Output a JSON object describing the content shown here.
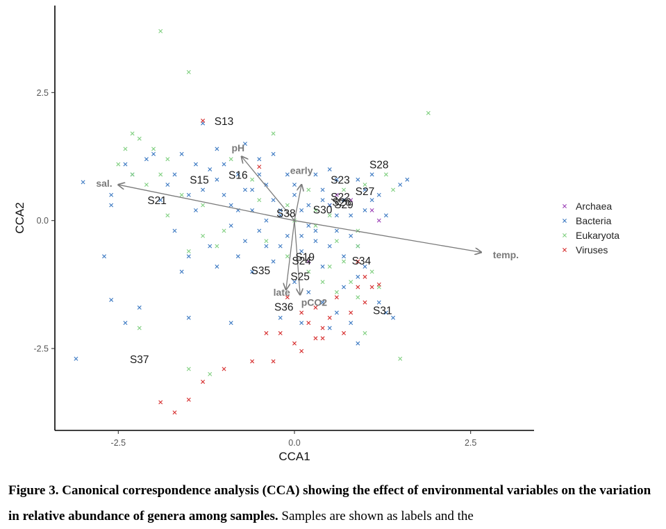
{
  "chart_data": {
    "type": "scatter",
    "title": "",
    "xlabel": "CCA1",
    "ylabel": "CCA2",
    "xlim": [
      -3.4,
      3.4
    ],
    "ylim": [
      -4.1,
      4.2
    ],
    "xticks": [
      -2.5,
      0.0,
      2.5
    ],
    "yticks": [
      -2.5,
      0.0,
      2.5
    ],
    "xtick_labels": [
      "-2.5",
      "0.0",
      "2.5"
    ],
    "ytick_labels": [
      "-2.5",
      "0.0",
      "2.5"
    ],
    "grid": false,
    "legend": {
      "position": "right",
      "entries": [
        {
          "name": "Archaea",
          "color": "#9b3fb5"
        },
        {
          "name": "Bacteria",
          "color": "#3a78c2"
        },
        {
          "name": "Eukaryota",
          "color": "#7fcf7f"
        },
        {
          "name": "Viruses",
          "color": "#d62b2b"
        }
      ]
    },
    "series": [
      {
        "name": "Archaea",
        "marker": "x",
        "color": "#9b3fb5",
        "points": [
          [
            0.5,
            0.3
          ],
          [
            1.2,
            0.0
          ],
          [
            0.8,
            0.4
          ],
          [
            0.2,
            -0.8
          ],
          [
            0.6,
            0.5
          ],
          [
            1.1,
            0.2
          ]
        ]
      },
      {
        "name": "Bacteria",
        "marker": "x",
        "color": "#3a78c2",
        "points": [
          [
            -3.1,
            -2.7
          ],
          [
            -3.0,
            0.75
          ],
          [
            -2.7,
            -0.7
          ],
          [
            -2.6,
            -1.55
          ],
          [
            -2.6,
            0.3
          ],
          [
            -2.4,
            -2.0
          ],
          [
            -2.2,
            -1.7
          ],
          [
            -1.5,
            -1.9
          ],
          [
            -1.3,
            1.9
          ],
          [
            -1.6,
            1.3
          ],
          [
            -1.4,
            1.1
          ],
          [
            -1.2,
            1.0
          ],
          [
            -1.1,
            0.8
          ],
          [
            -1.0,
            0.5
          ],
          [
            -0.9,
            0.3
          ],
          [
            -0.9,
            -0.1
          ],
          [
            -0.8,
            0.9
          ],
          [
            -0.7,
            0.6
          ],
          [
            -0.6,
            0.2
          ],
          [
            -0.5,
            -0.2
          ],
          [
            -0.4,
            0.7
          ],
          [
            -0.3,
            0.4
          ],
          [
            -0.2,
            0.1
          ],
          [
            -0.1,
            -0.3
          ],
          [
            0.0,
            0.5
          ],
          [
            0.1,
            0.2
          ],
          [
            0.2,
            -0.1
          ],
          [
            0.3,
            -0.4
          ],
          [
            0.4,
            0.6
          ],
          [
            0.5,
            0.3
          ],
          [
            0.6,
            -0.2
          ],
          [
            0.7,
            0.4
          ],
          [
            0.8,
            0.1
          ],
          [
            0.9,
            -0.5
          ],
          [
            1.0,
            0.2
          ],
          [
            1.1,
            0.9
          ],
          [
            1.2,
            0.5
          ],
          [
            1.5,
            0.7
          ],
          [
            1.6,
            0.8
          ],
          [
            -0.8,
            -0.7
          ],
          [
            -0.6,
            -1.0
          ],
          [
            -0.4,
            -0.5
          ],
          [
            -0.3,
            -0.8
          ],
          [
            0.0,
            -1.2
          ],
          [
            0.2,
            -1.4
          ],
          [
            0.4,
            -1.6
          ],
          [
            0.6,
            -1.8
          ],
          [
            0.8,
            -2.0
          ],
          [
            0.9,
            -2.4
          ],
          [
            1.2,
            -1.6
          ],
          [
            1.4,
            -1.9
          ],
          [
            1.3,
            -1.8
          ],
          [
            -1.2,
            -0.5
          ],
          [
            -1.5,
            0.5
          ],
          [
            -1.8,
            0.7
          ],
          [
            -2.1,
            1.2
          ],
          [
            -2.4,
            1.1
          ],
          [
            -1.9,
            0.4
          ],
          [
            -1.7,
            -0.2
          ],
          [
            -1.4,
            0.2
          ],
          [
            -1.1,
            1.4
          ],
          [
            -0.7,
            1.5
          ],
          [
            -0.5,
            1.2
          ],
          [
            0.3,
            0.9
          ],
          [
            0.5,
            1.0
          ],
          [
            0.9,
            0.8
          ],
          [
            1.0,
            0.6
          ],
          [
            -0.2,
            -0.5
          ],
          [
            0.1,
            -0.6
          ],
          [
            0.4,
            -0.9
          ],
          [
            0.7,
            -0.7
          ],
          [
            -0.9,
            -2.0
          ],
          [
            -0.2,
            -1.9
          ],
          [
            0.1,
            -2.0
          ],
          [
            0.5,
            -2.1
          ],
          [
            -1.1,
            -0.9
          ],
          [
            -0.3,
            1.3
          ],
          [
            -0.1,
            0.9
          ],
          [
            0.6,
            0.8
          ],
          [
            1.1,
            0.4
          ],
          [
            1.3,
            0.1
          ],
          [
            -2.6,
            0.5
          ],
          [
            -2.3,
            0.9
          ],
          [
            -1.6,
            -1.0
          ],
          [
            -0.6,
            0.6
          ],
          [
            0.2,
            0.3
          ],
          [
            0.3,
            -0.2
          ],
          [
            0.8,
            -0.3
          ],
          [
            -0.4,
            0.0
          ],
          [
            -0.8,
            0.2
          ],
          [
            -1.3,
            0.6
          ],
          [
            -1.0,
            1.1
          ],
          [
            -0.5,
            0.9
          ],
          [
            0.0,
            0.7
          ],
          [
            0.4,
            0.4
          ],
          [
            0.6,
            0.1
          ],
          [
            0.1,
            -0.3
          ],
          [
            -0.2,
            0.2
          ],
          [
            0.5,
            -0.5
          ],
          [
            1.0,
            -0.9
          ],
          [
            0.9,
            -1.1
          ],
          [
            0.7,
            -1.3
          ],
          [
            -0.7,
            -0.4
          ],
          [
            -1.5,
            -0.7
          ],
          [
            -1.7,
            0.9
          ],
          [
            -2.0,
            1.3
          ]
        ]
      },
      {
        "name": "Eukaryota",
        "marker": "x",
        "color": "#7fcf7f",
        "points": [
          [
            -1.9,
            3.7
          ],
          [
            -1.5,
            2.9
          ],
          [
            1.9,
            2.1
          ],
          [
            -0.3,
            1.7
          ],
          [
            -2.3,
            1.7
          ],
          [
            -2.2,
            1.6
          ],
          [
            -2.0,
            1.4
          ],
          [
            -1.8,
            1.2
          ],
          [
            -2.3,
            0.9
          ],
          [
            -2.1,
            0.7
          ],
          [
            -1.6,
            0.5
          ],
          [
            -1.3,
            0.3
          ],
          [
            -1.5,
            -0.6
          ],
          [
            -1.3,
            -0.3
          ],
          [
            -2.2,
            -2.1
          ],
          [
            -1.5,
            -2.9
          ],
          [
            -1.2,
            -3.0
          ],
          [
            1.5,
            -2.7
          ],
          [
            1.0,
            -2.2
          ],
          [
            0.9,
            -1.5
          ],
          [
            1.1,
            -1.0
          ],
          [
            0.7,
            -0.8
          ],
          [
            0.9,
            -0.5
          ],
          [
            0.6,
            -0.4
          ],
          [
            0.3,
            -0.1
          ],
          [
            0.5,
            0.1
          ],
          [
            1.3,
            0.9
          ],
          [
            1.4,
            0.6
          ],
          [
            -0.9,
            1.2
          ],
          [
            -0.6,
            0.8
          ],
          [
            -0.1,
            0.3
          ],
          [
            0.2,
            0.6
          ],
          [
            0.8,
            -1.2
          ],
          [
            0.6,
            -1.4
          ],
          [
            0.4,
            -1.2
          ],
          [
            0.2,
            -1.0
          ],
          [
            -0.1,
            -0.7
          ],
          [
            -0.4,
            -0.4
          ],
          [
            -1.0,
            -0.2
          ],
          [
            -1.8,
            0.1
          ],
          [
            -2.5,
            1.1
          ],
          [
            -2.4,
            1.4
          ],
          [
            -1.9,
            0.9
          ],
          [
            -0.5,
            0.4
          ],
          [
            0.0,
            0.0
          ],
          [
            0.3,
            0.2
          ],
          [
            0.7,
            0.6
          ],
          [
            1.0,
            0.7
          ],
          [
            0.5,
            -0.9
          ],
          [
            0.9,
            -0.2
          ],
          [
            -1.1,
            -0.5
          ],
          [
            1.2,
            -1.3
          ]
        ]
      },
      {
        "name": "Viruses",
        "marker": "x",
        "color": "#d62b2b",
        "points": [
          [
            -1.3,
            1.95
          ],
          [
            -0.5,
            1.05
          ],
          [
            -1.9,
            -3.55
          ],
          [
            -1.7,
            -3.75
          ],
          [
            -1.5,
            -3.5
          ],
          [
            -1.3,
            -3.15
          ],
          [
            -1.0,
            -2.9
          ],
          [
            -0.6,
            -2.75
          ],
          [
            -0.3,
            -2.75
          ],
          [
            -0.4,
            -2.2
          ],
          [
            -0.2,
            -2.2
          ],
          [
            0.0,
            -2.4
          ],
          [
            0.1,
            -2.55
          ],
          [
            0.3,
            -2.3
          ],
          [
            0.4,
            -2.1
          ],
          [
            0.5,
            -1.9
          ],
          [
            0.7,
            -2.2
          ],
          [
            0.8,
            -1.8
          ],
          [
            1.0,
            -1.6
          ],
          [
            1.1,
            -1.3
          ],
          [
            1.2,
            -1.25
          ],
          [
            1.0,
            -1.1
          ],
          [
            0.9,
            -1.3
          ],
          [
            0.6,
            -1.5
          ],
          [
            0.3,
            -1.7
          ],
          [
            0.1,
            -1.8
          ],
          [
            -0.1,
            -1.5
          ],
          [
            0.4,
            -2.3
          ],
          [
            0.2,
            -2.0
          ],
          [
            0.9,
            -0.8
          ]
        ]
      }
    ],
    "sample_labels": [
      {
        "text": "S13",
        "x": -1.0,
        "y": 1.95
      },
      {
        "text": "S16",
        "x": -0.8,
        "y": 0.9
      },
      {
        "text": "S15",
        "x": -1.35,
        "y": 0.8
      },
      {
        "text": "S21",
        "x": -1.95,
        "y": 0.4
      },
      {
        "text": "S38",
        "x": -0.12,
        "y": 0.15
      },
      {
        "text": "S30",
        "x": 0.4,
        "y": 0.22
      },
      {
        "text": "S28",
        "x": 1.2,
        "y": 1.1
      },
      {
        "text": "S23",
        "x": 0.65,
        "y": 0.8
      },
      {
        "text": "S27",
        "x": 1.0,
        "y": 0.58
      },
      {
        "text": "S22",
        "x": 0.65,
        "y": 0.47
      },
      {
        "text": "S26",
        "x": 0.67,
        "y": 0.37
      },
      {
        "text": "S29",
        "x": 0.7,
        "y": 0.32
      },
      {
        "text": "S19",
        "x": 0.15,
        "y": -0.7
      },
      {
        "text": "S24",
        "x": 0.1,
        "y": -0.78
      },
      {
        "text": "S34",
        "x": 0.95,
        "y": -0.78
      },
      {
        "text": "S35",
        "x": -0.48,
        "y": -0.97
      },
      {
        "text": "S25",
        "x": 0.08,
        "y": -1.08
      },
      {
        "text": "S36",
        "x": -0.15,
        "y": -1.68
      },
      {
        "text": "S31",
        "x": 1.25,
        "y": -1.75
      },
      {
        "text": "S37",
        "x": -2.2,
        "y": -2.7
      }
    ],
    "env_vectors": [
      {
        "name": "sal.",
        "x": -2.5,
        "y": 0.7,
        "label_x": -2.7,
        "label_y": 0.73
      },
      {
        "name": "temp.",
        "x": 2.65,
        "y": -0.62,
        "label_x": 3.0,
        "label_y": -0.67
      },
      {
        "name": "pH",
        "x": -0.75,
        "y": 1.25,
        "label_x": -0.8,
        "label_y": 1.42
      },
      {
        "name": "early",
        "x": 0.1,
        "y": 0.7,
        "label_x": 0.1,
        "label_y": 0.98
      },
      {
        "name": "late",
        "x": -0.12,
        "y": -1.35,
        "label_x": -0.18,
        "label_y": -1.4
      },
      {
        "name": "pCO2",
        "x": 0.08,
        "y": -1.45,
        "label_x": 0.28,
        "label_y": -1.6
      }
    ]
  },
  "caption": {
    "bold": "Figure 3. Canonical correspondence analysis (CCA) showing the effect of environmental variables on the variation in relative abundance of genera among samples.",
    "normal": " Samples are shown as labels and the"
  }
}
